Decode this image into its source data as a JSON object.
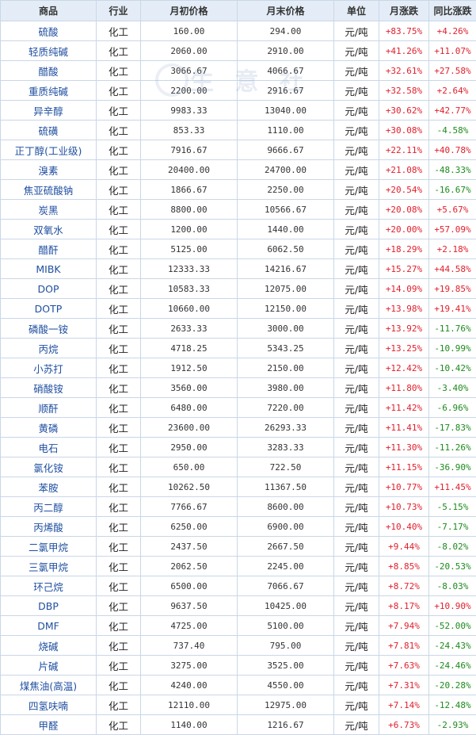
{
  "headers": [
    "商品",
    "行业",
    "月初价格",
    "月末价格",
    "单位",
    "月涨跌",
    "同比涨跌"
  ],
  "rows": [
    {
      "name": "硫酸",
      "industry": "化工",
      "start": "160.00",
      "end": "294.00",
      "unit": "元/吨",
      "month": "+83.75%",
      "yoy": "+4.26%"
    },
    {
      "name": "轻质纯碱",
      "industry": "化工",
      "start": "2060.00",
      "end": "2910.00",
      "unit": "元/吨",
      "month": "+41.26%",
      "yoy": "+11.07%"
    },
    {
      "name": "醋酸",
      "industry": "化工",
      "start": "3066.67",
      "end": "4066.67",
      "unit": "元/吨",
      "month": "+32.61%",
      "yoy": "+27.58%"
    },
    {
      "name": "重质纯碱",
      "industry": "化工",
      "start": "2200.00",
      "end": "2916.67",
      "unit": "元/吨",
      "month": "+32.58%",
      "yoy": "+2.64%"
    },
    {
      "name": "异辛醇",
      "industry": "化工",
      "start": "9983.33",
      "end": "13040.00",
      "unit": "元/吨",
      "month": "+30.62%",
      "yoy": "+42.77%"
    },
    {
      "name": "硫磺",
      "industry": "化工",
      "start": "853.33",
      "end": "1110.00",
      "unit": "元/吨",
      "month": "+30.08%",
      "yoy": "-4.58%"
    },
    {
      "name": "正丁醇(工业级)",
      "industry": "化工",
      "start": "7916.67",
      "end": "9666.67",
      "unit": "元/吨",
      "month": "+22.11%",
      "yoy": "+40.78%"
    },
    {
      "name": "溴素",
      "industry": "化工",
      "start": "20400.00",
      "end": "24700.00",
      "unit": "元/吨",
      "month": "+21.08%",
      "yoy": "-48.33%"
    },
    {
      "name": "焦亚硫酸钠",
      "industry": "化工",
      "start": "1866.67",
      "end": "2250.00",
      "unit": "元/吨",
      "month": "+20.54%",
      "yoy": "-16.67%"
    },
    {
      "name": "炭黑",
      "industry": "化工",
      "start": "8800.00",
      "end": "10566.67",
      "unit": "元/吨",
      "month": "+20.08%",
      "yoy": "+5.67%"
    },
    {
      "name": "双氧水",
      "industry": "化工",
      "start": "1200.00",
      "end": "1440.00",
      "unit": "元/吨",
      "month": "+20.00%",
      "yoy": "+57.09%"
    },
    {
      "name": "醋酐",
      "industry": "化工",
      "start": "5125.00",
      "end": "6062.50",
      "unit": "元/吨",
      "month": "+18.29%",
      "yoy": "+2.18%"
    },
    {
      "name": "MIBK",
      "industry": "化工",
      "start": "12333.33",
      "end": "14216.67",
      "unit": "元/吨",
      "month": "+15.27%",
      "yoy": "+44.58%"
    },
    {
      "name": "DOP",
      "industry": "化工",
      "start": "10583.33",
      "end": "12075.00",
      "unit": "元/吨",
      "month": "+14.09%",
      "yoy": "+19.85%"
    },
    {
      "name": "DOTP",
      "industry": "化工",
      "start": "10660.00",
      "end": "12150.00",
      "unit": "元/吨",
      "month": "+13.98%",
      "yoy": "+19.41%"
    },
    {
      "name": "磷酸一铵",
      "industry": "化工",
      "start": "2633.33",
      "end": "3000.00",
      "unit": "元/吨",
      "month": "+13.92%",
      "yoy": "-11.76%"
    },
    {
      "name": "丙烷",
      "industry": "化工",
      "start": "4718.25",
      "end": "5343.25",
      "unit": "元/吨",
      "month": "+13.25%",
      "yoy": "-10.99%"
    },
    {
      "name": "小苏打",
      "industry": "化工",
      "start": "1912.50",
      "end": "2150.00",
      "unit": "元/吨",
      "month": "+12.42%",
      "yoy": "-10.42%"
    },
    {
      "name": "硝酸铵",
      "industry": "化工",
      "start": "3560.00",
      "end": "3980.00",
      "unit": "元/吨",
      "month": "+11.80%",
      "yoy": "-3.40%"
    },
    {
      "name": "顺酐",
      "industry": "化工",
      "start": "6480.00",
      "end": "7220.00",
      "unit": "元/吨",
      "month": "+11.42%",
      "yoy": "-6.96%"
    },
    {
      "name": "黄磷",
      "industry": "化工",
      "start": "23600.00",
      "end": "26293.33",
      "unit": "元/吨",
      "month": "+11.41%",
      "yoy": "-17.83%"
    },
    {
      "name": "电石",
      "industry": "化工",
      "start": "2950.00",
      "end": "3283.33",
      "unit": "元/吨",
      "month": "+11.30%",
      "yoy": "-11.26%"
    },
    {
      "name": "氯化铵",
      "industry": "化工",
      "start": "650.00",
      "end": "722.50",
      "unit": "元/吨",
      "month": "+11.15%",
      "yoy": "-36.90%"
    },
    {
      "name": "苯胺",
      "industry": "化工",
      "start": "10262.50",
      "end": "11367.50",
      "unit": "元/吨",
      "month": "+10.77%",
      "yoy": "+11.45%"
    },
    {
      "name": "丙二醇",
      "industry": "化工",
      "start": "7766.67",
      "end": "8600.00",
      "unit": "元/吨",
      "month": "+10.73%",
      "yoy": "-5.15%"
    },
    {
      "name": "丙烯酸",
      "industry": "化工",
      "start": "6250.00",
      "end": "6900.00",
      "unit": "元/吨",
      "month": "+10.40%",
      "yoy": "-7.17%"
    },
    {
      "name": "二氯甲烷",
      "industry": "化工",
      "start": "2437.50",
      "end": "2667.50",
      "unit": "元/吨",
      "month": "+9.44%",
      "yoy": "-8.02%"
    },
    {
      "name": "三氯甲烷",
      "industry": "化工",
      "start": "2062.50",
      "end": "2245.00",
      "unit": "元/吨",
      "month": "+8.85%",
      "yoy": "-20.53%"
    },
    {
      "name": "环己烷",
      "industry": "化工",
      "start": "6500.00",
      "end": "7066.67",
      "unit": "元/吨",
      "month": "+8.72%",
      "yoy": "-8.03%"
    },
    {
      "name": "DBP",
      "industry": "化工",
      "start": "9637.50",
      "end": "10425.00",
      "unit": "元/吨",
      "month": "+8.17%",
      "yoy": "+10.90%"
    },
    {
      "name": "DMF",
      "industry": "化工",
      "start": "4725.00",
      "end": "5100.00",
      "unit": "元/吨",
      "month": "+7.94%",
      "yoy": "-52.00%"
    },
    {
      "name": "烧碱",
      "industry": "化工",
      "start": "737.40",
      "end": "795.00",
      "unit": "元/吨",
      "month": "+7.81%",
      "yoy": "-24.43%"
    },
    {
      "name": "片碱",
      "industry": "化工",
      "start": "3275.00",
      "end": "3525.00",
      "unit": "元/吨",
      "month": "+7.63%",
      "yoy": "-24.46%"
    },
    {
      "name": "煤焦油(高温)",
      "industry": "化工",
      "start": "4240.00",
      "end": "4550.00",
      "unit": "元/吨",
      "month": "+7.31%",
      "yoy": "-20.28%"
    },
    {
      "name": "四氢呋喃",
      "industry": "化工",
      "start": "12110.00",
      "end": "12975.00",
      "unit": "元/吨",
      "month": "+7.14%",
      "yoy": "-12.48%"
    },
    {
      "name": "甲醛",
      "industry": "化工",
      "start": "1140.00",
      "end": "1216.67",
      "unit": "元/吨",
      "month": "+6.73%",
      "yoy": "-2.93%"
    }
  ],
  "watermark": {
    "text": "生 意 社"
  },
  "colors": {
    "up": "#e0202c",
    "down": "#1c8a1c",
    "name": "#1f4fa0",
    "header_bg": "#e4edf7",
    "border": "#c9d7e8"
  }
}
